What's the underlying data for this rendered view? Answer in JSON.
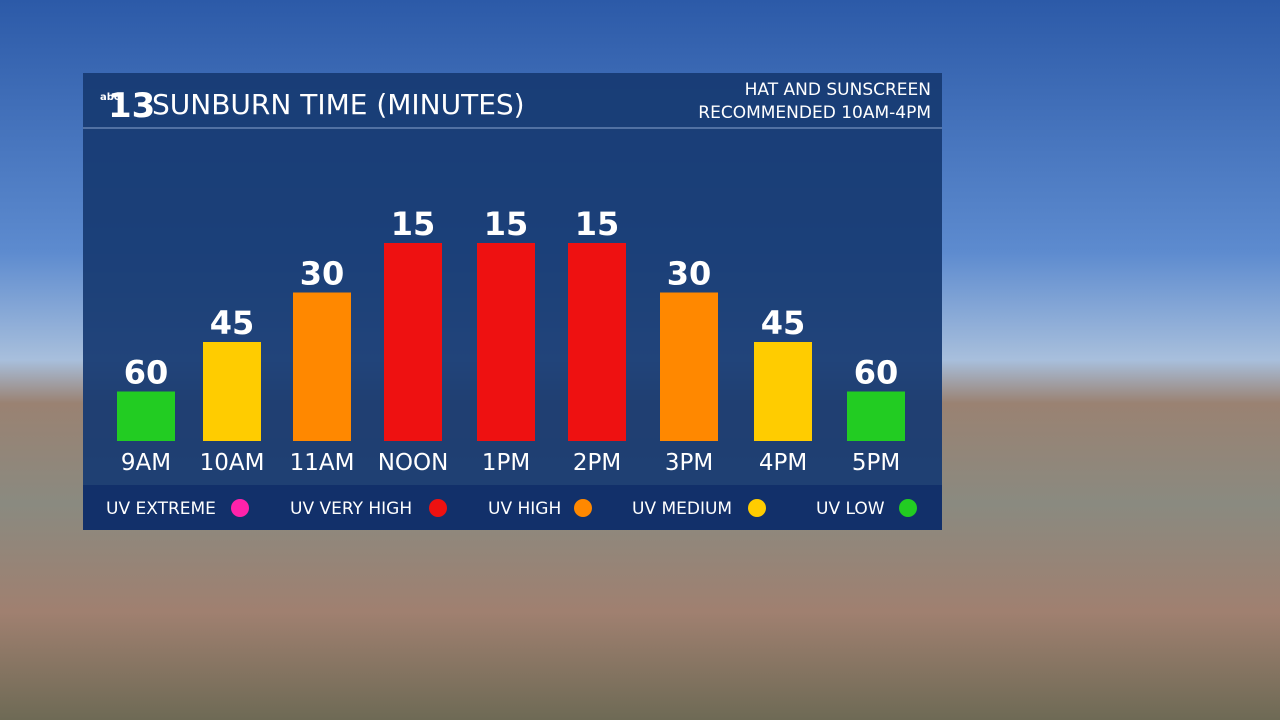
{
  "chart_data": {
    "type": "bar",
    "logo": "13",
    "logo_small": "abc",
    "title": "SUNBURN TIME (MINUTES)",
    "subtitle": [
      "HAT AND SUNSCREEN",
      "RECOMMENDED 10AM-4PM"
    ],
    "categories": [
      "9AM",
      "10AM",
      "11AM",
      "NOON",
      "1PM",
      "2PM",
      "3PM",
      "4PM",
      "5PM"
    ],
    "values": [
      60,
      45,
      30,
      15,
      15,
      15,
      30,
      45,
      60
    ],
    "colors": [
      "#22cc22",
      "#ffcc00",
      "#ff8800",
      "#ee1111",
      "#ee1111",
      "#ee1111",
      "#ff8800",
      "#ffcc00",
      "#22cc22"
    ],
    "legend": [
      {
        "name": "UV EXTREME",
        "color": "#ff22aa"
      },
      {
        "name": "UV VERY HIGH",
        "color": "#ee1111"
      },
      {
        "name": "UV HIGH",
        "color": "#ff8800"
      },
      {
        "name": "UV MEDIUM",
        "color": "#ffcc00"
      },
      {
        "name": "UV LOW",
        "color": "#22cc22"
      }
    ]
  }
}
